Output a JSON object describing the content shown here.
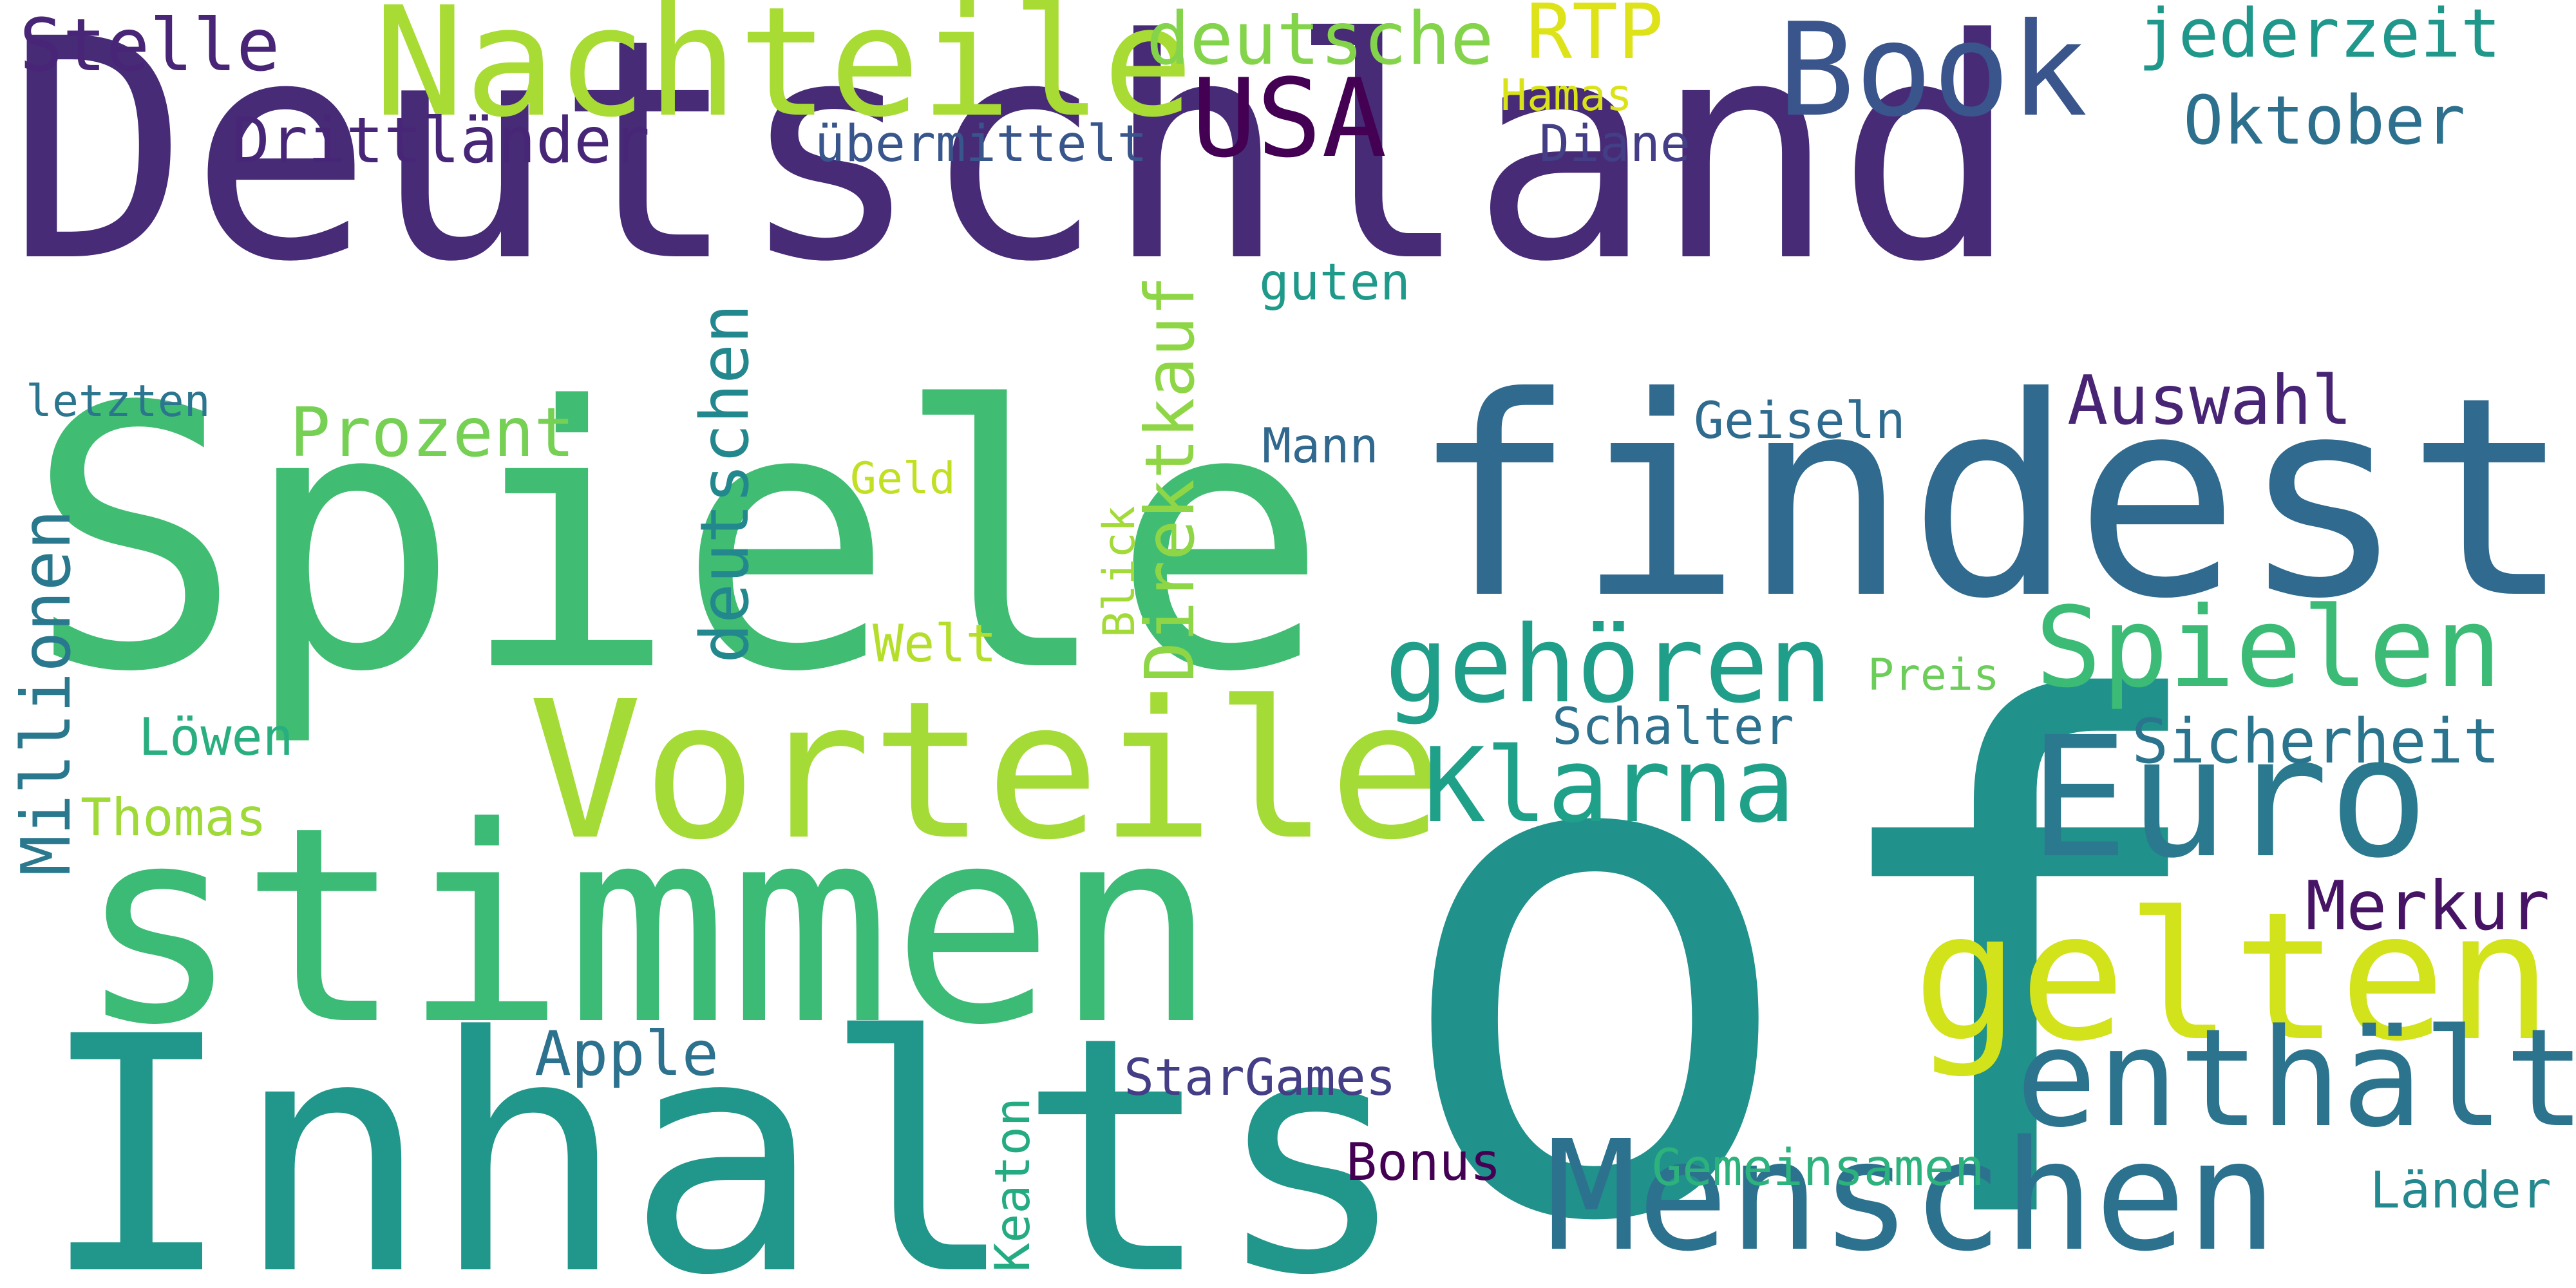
{
  "words": [
    {
      "text": "Deutschland",
      "color": "#472b77"
    },
    {
      "text": "Spiele",
      "color": "#40bd72"
    },
    {
      "text": "findest",
      "color": "#306a8e"
    },
    {
      "text": "of",
      "color": "#21918c"
    },
    {
      "text": "stimmen",
      "color": "#3bbb75"
    },
    {
      "text": "Inhalts",
      "color": "#21968a"
    },
    {
      "text": "Vorteile",
      "color": "#a5db36"
    },
    {
      "text": "Nachteile",
      "color": "#a8db34"
    },
    {
      "text": "Menschen",
      "color": "#2c728e"
    },
    {
      "text": "gelten",
      "color": "#d2e21b"
    },
    {
      "text": "Euro",
      "color": "#2a798e"
    },
    {
      "text": "Book",
      "color": "#3a548c"
    },
    {
      "text": "enthält",
      "color": "#2c738e"
    },
    {
      "text": "Spielen",
      "color": "#3bbb75"
    },
    {
      "text": "Klarna",
      "color": "#1fa088"
    },
    {
      "text": "gehören",
      "color": "#1f9e89"
    },
    {
      "text": "USA",
      "color": "#440154"
    },
    {
      "text": "Stelle",
      "color": "#482576"
    },
    {
      "text": "deutsche",
      "color": "#84d44b"
    },
    {
      "text": "RTP",
      "color": "#dde318"
    },
    {
      "text": "jederzeit",
      "color": "#1f978b"
    },
    {
      "text": "Drittländer",
      "color": "#482677"
    },
    {
      "text": "übermittelt",
      "color": "#39568c"
    },
    {
      "text": "Hamas",
      "color": "#dae319"
    },
    {
      "text": "Diane",
      "color": "#433e85"
    },
    {
      "text": "Oktober",
      "color": "#2d708e"
    },
    {
      "text": "Direktkauf",
      "color": "#8ed645"
    },
    {
      "text": "deutschen",
      "color": "#23888e"
    },
    {
      "text": "guten",
      "color": "#1f9a8a"
    },
    {
      "text": "Prozent",
      "color": "#75d054"
    },
    {
      "text": "Auswahl",
      "color": "#482475"
    },
    {
      "text": "Geiseln",
      "color": "#2f6b8e"
    },
    {
      "text": "letzten",
      "color": "#2b758e"
    },
    {
      "text": "Mann",
      "color": "#31688e"
    },
    {
      "text": "Geld",
      "color": "#c2df23"
    },
    {
      "text": "Millionen",
      "color": "#2a788e"
    },
    {
      "text": "Blick",
      "color": "#a2da37"
    },
    {
      "text": "Welt",
      "color": "#b5de2b"
    },
    {
      "text": "Preis",
      "color": "#6ccd5a"
    },
    {
      "text": "Schalter",
      "color": "#2d718e"
    },
    {
      "text": "Sicherheit",
      "color": "#2b748e"
    },
    {
      "text": "Löwen",
      "color": "#29af7f"
    },
    {
      "text": "Thomas",
      "color": "#a0da39"
    },
    {
      "text": "Merkur",
      "color": "#471365"
    },
    {
      "text": "Apple",
      "color": "#2c728e"
    },
    {
      "text": "StarGames",
      "color": "#433e85"
    },
    {
      "text": "Keaton",
      "color": "#25ab82"
    },
    {
      "text": "Bonus",
      "color": "#440154"
    },
    {
      "text": "Gemeinsamen",
      "color": "#2db27d"
    },
    {
      "text": "Länder",
      "color": "#23898e"
    }
  ]
}
